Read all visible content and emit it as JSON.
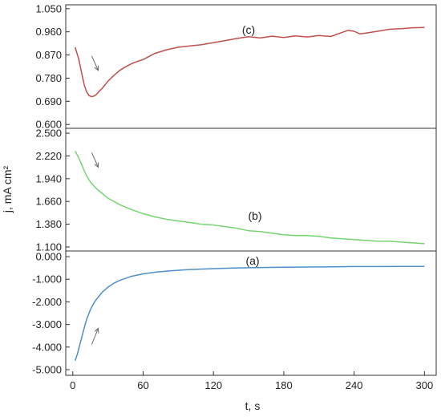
{
  "chart_data": {
    "type": "line",
    "xlabel": "t, s",
    "ylabel": "j, mA cm²",
    "xlim": [
      -6,
      310
    ],
    "x_ticks": [
      0,
      60,
      120,
      180,
      240,
      300
    ],
    "x_tick_labels": [
      "0",
      "60",
      "120",
      "180",
      "240",
      "300"
    ],
    "grid": false,
    "legend": "none",
    "panels": [
      {
        "label": "(c)",
        "color": "#c0504d",
        "arrow": "down",
        "ylim": [
          0.585,
          1.065
        ],
        "y_ticks": [
          0.6,
          0.69,
          0.78,
          0.87,
          0.96,
          1.05
        ],
        "y_tick_labels": [
          "0.600",
          "0.690",
          "0.780",
          "0.870",
          "0.960",
          "1.050"
        ],
        "x": [
          2,
          5,
          8,
          10,
          12,
          14,
          16,
          18,
          20,
          25,
          30,
          35,
          40,
          45,
          50,
          55,
          60,
          70,
          80,
          90,
          100,
          110,
          120,
          130,
          140,
          150,
          160,
          170,
          180,
          190,
          200,
          210,
          220,
          230,
          235,
          240,
          245,
          250,
          260,
          270,
          280,
          290,
          300
        ],
        "values": [
          0.9,
          0.855,
          0.79,
          0.75,
          0.725,
          0.712,
          0.708,
          0.71,
          0.716,
          0.74,
          0.768,
          0.79,
          0.81,
          0.824,
          0.836,
          0.845,
          0.852,
          0.876,
          0.89,
          0.9,
          0.905,
          0.91,
          0.918,
          0.926,
          0.934,
          0.941,
          0.936,
          0.943,
          0.938,
          0.944,
          0.94,
          0.946,
          0.942,
          0.958,
          0.966,
          0.962,
          0.952,
          0.955,
          0.962,
          0.97,
          0.972,
          0.976,
          0.977
        ]
      },
      {
        "label": "(b)",
        "color": "#77d46f",
        "arrow": "down",
        "ylim": [
          1.05,
          2.56
        ],
        "y_ticks": [
          1.1,
          1.38,
          1.66,
          1.94,
          2.22,
          2.5
        ],
        "y_tick_labels": [
          "1.100",
          "1.380",
          "1.660",
          "1.940",
          "2.220",
          "2.500"
        ],
        "x": [
          2,
          5,
          8,
          10,
          12,
          15,
          20,
          25,
          30,
          40,
          50,
          60,
          70,
          80,
          90,
          100,
          110,
          120,
          130,
          140,
          150,
          160,
          170,
          180,
          190,
          200,
          210,
          220,
          230,
          240,
          250,
          260,
          270,
          280,
          290,
          300
        ],
        "values": [
          2.28,
          2.2,
          2.1,
          2.03,
          1.97,
          1.9,
          1.82,
          1.76,
          1.7,
          1.62,
          1.56,
          1.51,
          1.47,
          1.44,
          1.42,
          1.4,
          1.38,
          1.37,
          1.35,
          1.33,
          1.3,
          1.29,
          1.27,
          1.25,
          1.24,
          1.24,
          1.23,
          1.21,
          1.2,
          1.19,
          1.18,
          1.17,
          1.17,
          1.16,
          1.15,
          1.14
        ]
      },
      {
        "label": "(a)",
        "color": "#4f8fc9",
        "arrow": "up",
        "ylim": [
          -5.25,
          0.25
        ],
        "y_ticks": [
          -5,
          -4,
          -3,
          -2,
          -1,
          0
        ],
        "y_tick_labels": [
          "-5.000",
          "-4.000",
          "-3.000",
          "-2.000",
          "-1.000",
          "0.000"
        ],
        "x": [
          2,
          4,
          6,
          8,
          10,
          12,
          15,
          18,
          20,
          25,
          30,
          35,
          40,
          50,
          60,
          70,
          80,
          90,
          100,
          120,
          140,
          160,
          180,
          200,
          220,
          240,
          260,
          280,
          300
        ],
        "values": [
          -4.6,
          -4.3,
          -3.9,
          -3.5,
          -3.1,
          -2.75,
          -2.35,
          -2.05,
          -1.9,
          -1.58,
          -1.35,
          -1.18,
          -1.05,
          -0.87,
          -0.76,
          -0.69,
          -0.64,
          -0.6,
          -0.57,
          -0.53,
          -0.5,
          -0.48,
          -0.47,
          -0.46,
          -0.45,
          -0.44,
          -0.44,
          -0.43,
          -0.43
        ]
      }
    ]
  }
}
